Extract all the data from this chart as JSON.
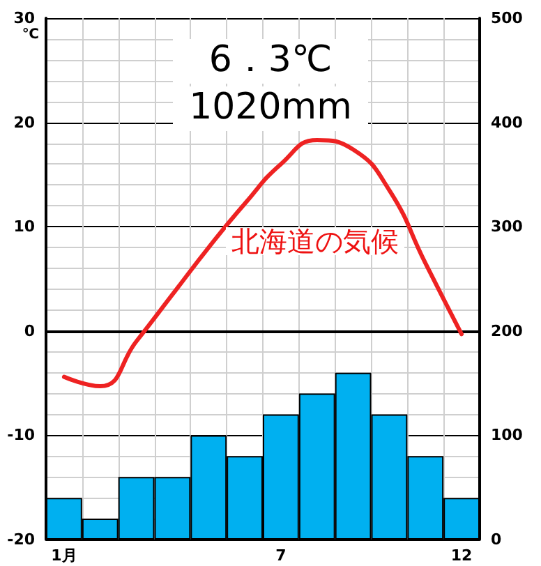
{
  "chart_data": {
    "type": "bar",
    "title": "北海道の気候",
    "ylabel": "℃",
    "annotations": [
      "6．3℃",
      "1020mm"
    ],
    "categories": [
      "1月",
      null,
      null,
      null,
      null,
      null,
      "7",
      null,
      null,
      null,
      null,
      "12"
    ],
    "series": [
      {
        "axis": "y2",
        "color": "#00b0f0",
        "values": [
          40,
          20,
          60,
          60,
          100,
          80,
          120,
          140,
          160,
          120,
          80,
          40
        ]
      },
      {
        "type": "line",
        "color": "#ee2222",
        "values": [
          -4.4,
          -5.3,
          -1.0,
          3.5,
          8.0,
          12.2,
          16.0,
          18.3,
          17.4,
          13.5,
          6.5,
          -0.3
        ]
      }
    ],
    "ylim": [
      -20,
      30
    ],
    "yticks": [
      -20,
      -10,
      0,
      10,
      20,
      30
    ],
    "y2lim": [
      0,
      500
    ],
    "y2ticks": [
      0,
      100,
      200,
      300,
      400,
      500
    ],
    "grid": true,
    "marker": "none"
  }
}
